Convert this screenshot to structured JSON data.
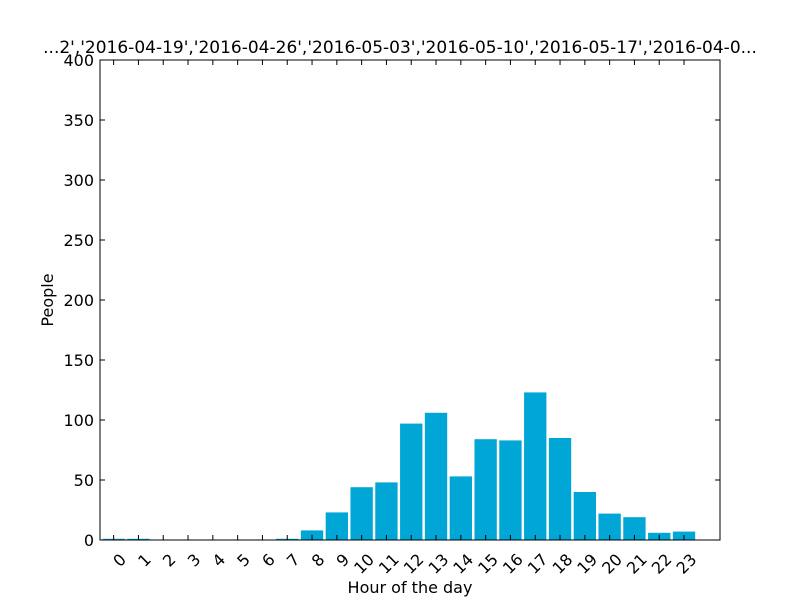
{
  "chart_data": {
    "type": "bar",
    "title": "...2','2016-04-19','2016-04-26','2016-05-03','2016-05-10','2016-05-17','2016-04-0...",
    "xlabel": "Hour of the day",
    "ylabel": "People",
    "categories": [
      "0",
      "1",
      "2",
      "3",
      "4",
      "5",
      "6",
      "7",
      "8",
      "9",
      "10",
      "11",
      "12",
      "13",
      "14",
      "15",
      "16",
      "17",
      "18",
      "19",
      "20",
      "21",
      "22",
      "23"
    ],
    "values": [
      1,
      1,
      0,
      0,
      0,
      0,
      0,
      1,
      8,
      23,
      44,
      48,
      97,
      106,
      53,
      84,
      83,
      123,
      85,
      40,
      22,
      19,
      6,
      7
    ],
    "ylim": [
      0,
      400
    ],
    "yticks": [
      0,
      50,
      100,
      150,
      200,
      250,
      300,
      350,
      400
    ],
    "xlim": [
      -0.1,
      24.9
    ],
    "bar_color": "#00a6d6",
    "grid": false,
    "legend": "none"
  }
}
